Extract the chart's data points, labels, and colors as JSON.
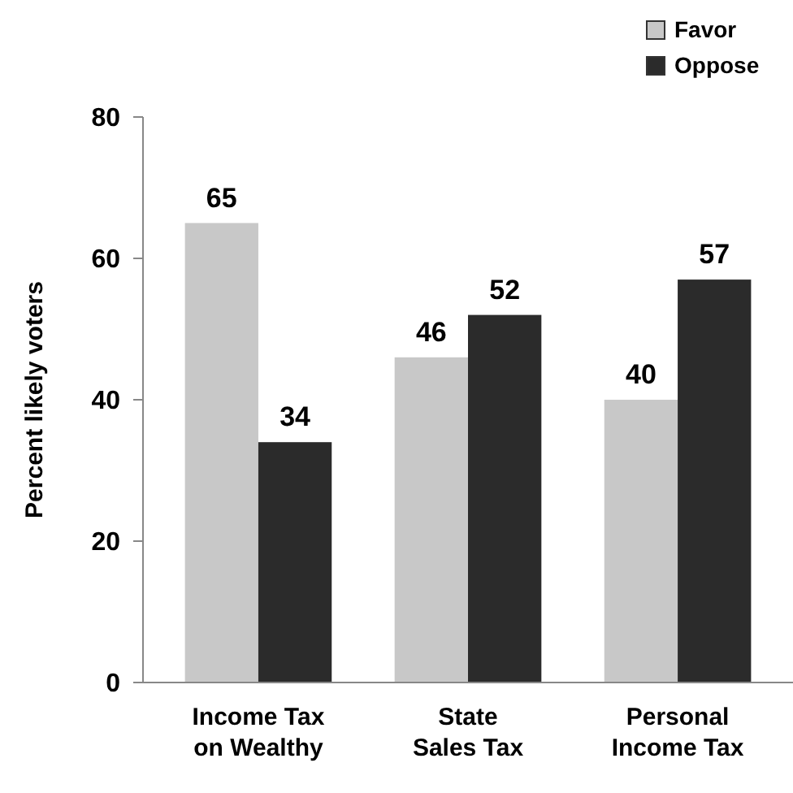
{
  "chart_data": {
    "type": "bar",
    "ylabel": "Percent likely voters",
    "categories": [
      "Income Tax\non Wealthy",
      "State\nSales Tax",
      "Personal\nIncome Tax"
    ],
    "series": [
      {
        "name": "Favor",
        "color": "#c8c8c8",
        "values": [
          65,
          46,
          40
        ]
      },
      {
        "name": "Oppose",
        "color": "#2b2b2b",
        "values": [
          34,
          52,
          57
        ]
      }
    ],
    "ylim": [
      0,
      80
    ],
    "yticks": [
      0,
      20,
      40,
      60,
      80
    ],
    "data_labels": true,
    "legend": "top right",
    "grid": false
  }
}
